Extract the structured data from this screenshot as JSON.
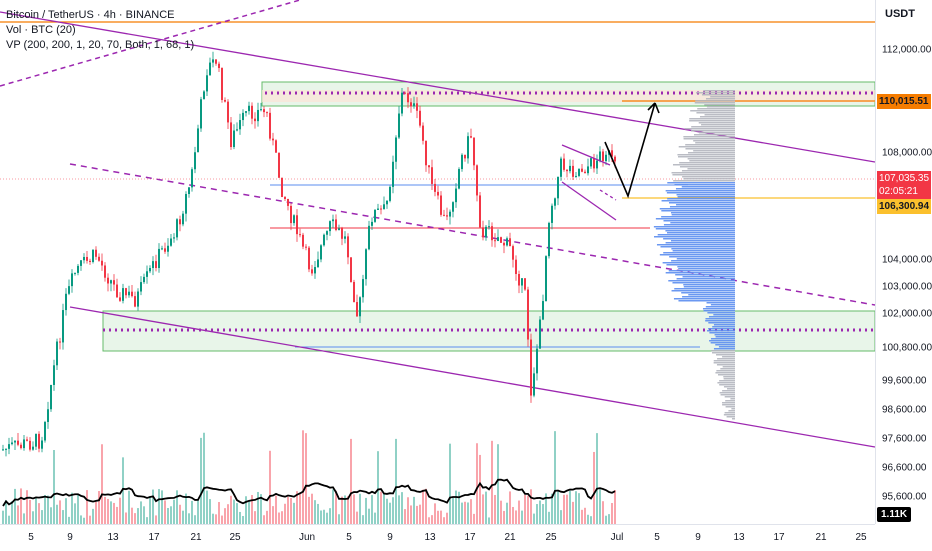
{
  "legend": {
    "symbol": "Bitcoin / TetherUS · 4h · BINANCE",
    "volume": "Vol · BTC (20)",
    "vp": "VP (200, 200, 1, 20, 70, Both, 1, 68, 1)"
  },
  "price_scale": {
    "currency": "USDT",
    "ticks": [
      "112,000.00",
      "108,000.00",
      "104,000.00",
      "103,000.00",
      "102,000.00",
      "100,800.00",
      "99,600.00",
      "98,600.00",
      "97,600.00",
      "96,600.00",
      "95,600.00"
    ],
    "labels": {
      "orange": "110,015.51",
      "last_price": "107,035.35",
      "countdown": "02:05:21",
      "support": "106,300.94",
      "volume": "1.11K"
    },
    "colors": {
      "orange": "#f57c00",
      "last": "#f23645",
      "support": "#fbc02d"
    }
  },
  "time_axis": {
    "ticks": [
      "5",
      "9",
      "13",
      "17",
      "21",
      "25",
      "Jun",
      "5",
      "9",
      "13",
      "17",
      "21",
      "25",
      "Jul",
      "5",
      "9",
      "13",
      "17",
      "21",
      "25"
    ]
  },
  "colors": {
    "up": "#089981",
    "down": "#f23645",
    "channel": "#9c27b0",
    "zone_fill": "#e8f5e9",
    "zone_border": "#4caf50",
    "vp_blue": "#5b8def",
    "vp_gray": "#b2b5be"
  }
}
